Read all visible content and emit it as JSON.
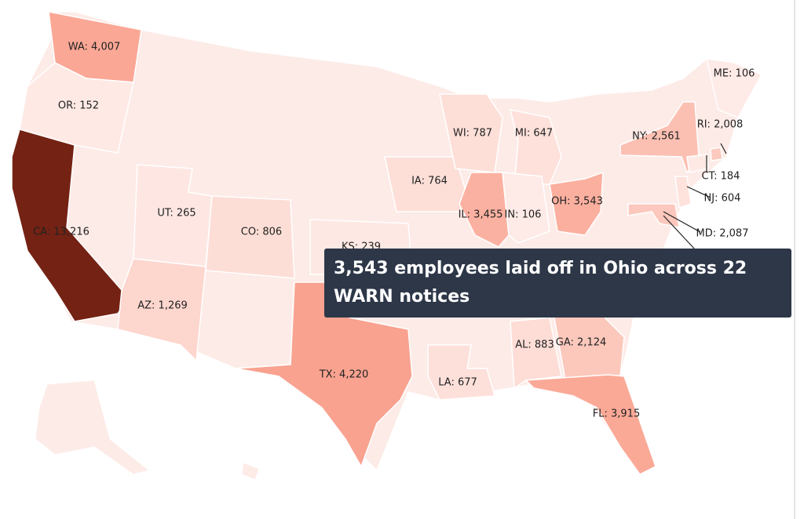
{
  "map": {
    "states": [
      {
        "label": "WA: 4,007",
        "value": 4007
      },
      {
        "label": "OR: 152",
        "value": 152
      },
      {
        "label": "CA: 13,216",
        "value": 13216
      },
      {
        "label": "UT: 265",
        "value": 265
      },
      {
        "label": "CO: 806",
        "value": 806
      },
      {
        "label": "AZ: 1,269",
        "value": 1269
      },
      {
        "label": "KS: 239",
        "value": 239
      },
      {
        "label": "TX: 4,220",
        "value": 4220
      },
      {
        "label": "IA: 764",
        "value": 764
      },
      {
        "label": "WI: 787",
        "value": 787
      },
      {
        "label": "MI: 647",
        "value": 647
      },
      {
        "label": "IL: 3,455",
        "value": 3455
      },
      {
        "label": "IN: 106",
        "value": 106
      },
      {
        "label": "OH: 3,543",
        "value": 3543
      },
      {
        "label": "NY: 2,561",
        "value": 2561
      },
      {
        "label": "ME: 106",
        "value": 106
      },
      {
        "label": "RI: 2,008",
        "value": 2008
      },
      {
        "label": "CT: 184",
        "value": 184
      },
      {
        "label": "NJ: 604",
        "value": 604
      },
      {
        "label": "MD: 2,087",
        "value": 2087
      },
      {
        "label": "AL: 883",
        "value": 883
      },
      {
        "label": "GA: 2,124",
        "value": 2124
      },
      {
        "label": "LA: 677",
        "value": 677
      },
      {
        "label": "FL: 3,915",
        "value": 3915
      }
    ],
    "tooltip": "3,543 employees laid off in Ohio across 22 WARN notices"
  }
}
